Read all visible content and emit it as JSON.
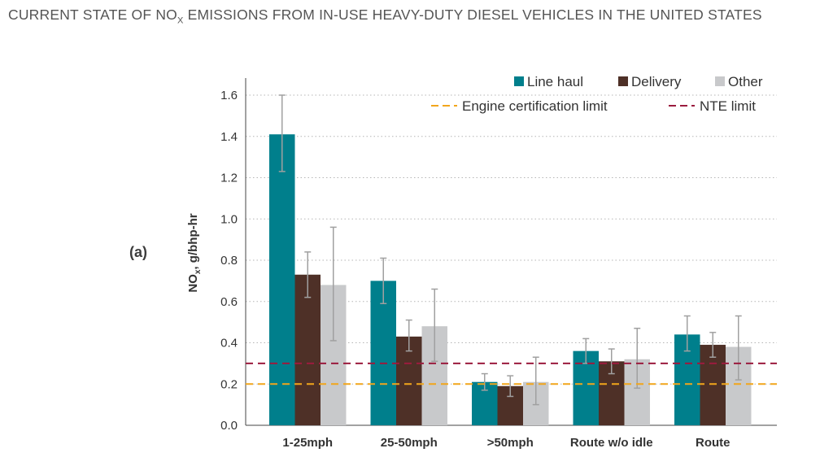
{
  "title_prefix": "CURRENT STATE OF NO",
  "title_sub": "X",
  "title_suffix": " EMISSIONS FROM IN-USE HEAVY-DUTY DIESEL VEHICLES IN THE UNITED STATES",
  "panel_label": "(a)",
  "chart_data": {
    "type": "bar",
    "categories": [
      "1-25mph",
      "25-50mph",
      ">50mph",
      "Route w/o idle",
      "Route"
    ],
    "series": [
      {
        "name": "Line haul",
        "color": "#007f8c",
        "values": [
          1.41,
          0.7,
          0.21,
          0.36,
          0.44
        ],
        "err_low": [
          1.23,
          0.59,
          0.17,
          0.3,
          0.36
        ],
        "err_high": [
          1.6,
          0.81,
          0.25,
          0.42,
          0.53
        ]
      },
      {
        "name": "Delivery",
        "color": "#4e3027",
        "values": [
          0.73,
          0.43,
          0.19,
          0.31,
          0.39
        ],
        "err_low": [
          0.62,
          0.36,
          0.14,
          0.25,
          0.33
        ],
        "err_high": [
          0.84,
          0.51,
          0.24,
          0.37,
          0.45
        ]
      },
      {
        "name": "Other",
        "color": "#c8c9cb",
        "values": [
          0.68,
          0.48,
          0.21,
          0.32,
          0.38
        ],
        "err_low": [
          0.41,
          0.31,
          0.1,
          0.18,
          0.22
        ],
        "err_high": [
          0.96,
          0.66,
          0.33,
          0.47,
          0.53
        ]
      }
    ],
    "reference_lines": [
      {
        "name": "Engine certification limit",
        "value": 0.2,
        "color": "#f2a61b",
        "style": "dashed"
      },
      {
        "name": "NTE limit",
        "value": 0.3,
        "color": "#9b1b3e",
        "style": "dashed"
      }
    ],
    "ylabel_main": "NO",
    "ylabel_sub": "x",
    "ylabel_rest": ", g/bhp-hr",
    "xlabel": "",
    "ylim": [
      0,
      1.6
    ],
    "yticks": [
      "0.0",
      "0.2",
      "0.4",
      "0.6",
      "0.8",
      "1.0",
      "1.2",
      "1.4",
      "1.6"
    ],
    "grid": true,
    "legend_position": "top-right"
  }
}
